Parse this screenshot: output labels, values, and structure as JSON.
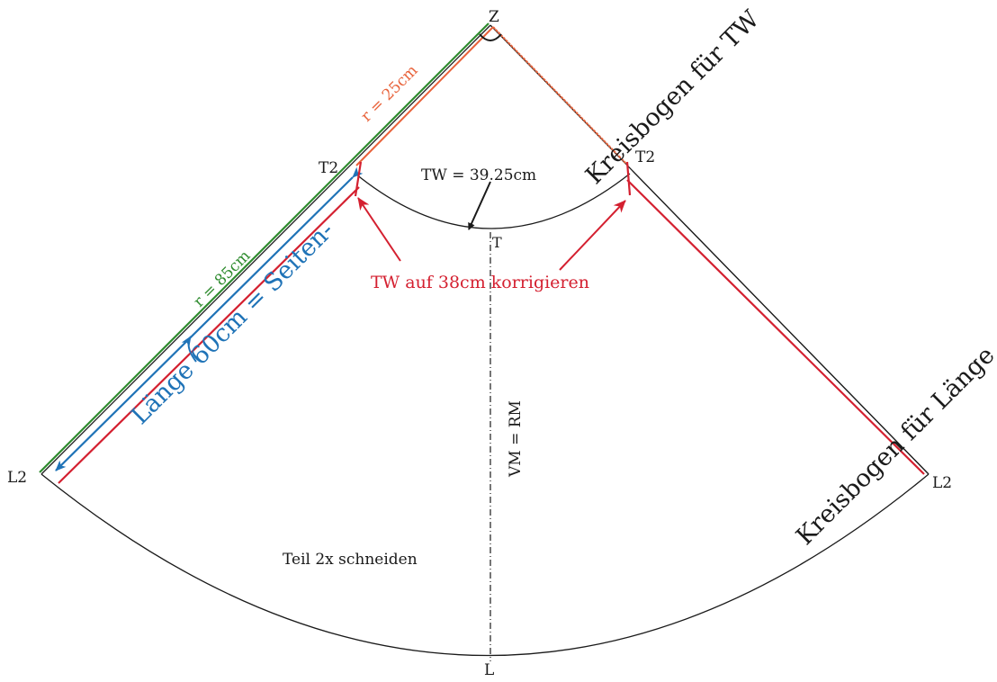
{
  "labels": {
    "z": "Z",
    "t2_left": "T2",
    "t2_right": "T2",
    "t": "T",
    "l2_left": "L2",
    "l2_right": "L2",
    "l": "L",
    "r_small": "r = 25cm",
    "r_large": "r = 85cm",
    "waist": "TW = 39.25cm",
    "correction": "TW auf 38cm korrigieren",
    "side_length_1": "Länge 60cm = Seiten-",
    "center_line": "VM = RM",
    "arc_waist": "Kreisbogen für TW",
    "arc_length": "Kreisbogen für Länge",
    "cut_note": "Teil 2x schneiden"
  },
  "colors": {
    "line": "#1a1a1a",
    "orange": "#e8623a",
    "green": "#2e8b2e",
    "red": "#d42030",
    "blue": "#1f73b7"
  }
}
